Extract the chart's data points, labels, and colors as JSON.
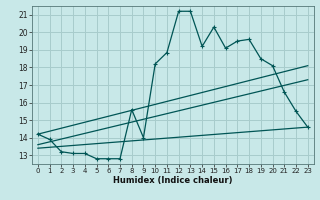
{
  "background_color": "#c8e8e8",
  "grid_color": "#a8cccc",
  "line_color": "#005555",
  "xlabel": "Humidex (Indice chaleur)",
  "xlim": [
    -0.5,
    23.5
  ],
  "ylim": [
    12.5,
    21.5
  ],
  "yticks": [
    13,
    14,
    15,
    16,
    17,
    18,
    19,
    20,
    21
  ],
  "xticks": [
    0,
    1,
    2,
    3,
    4,
    5,
    6,
    7,
    8,
    9,
    10,
    11,
    12,
    13,
    14,
    15,
    16,
    17,
    18,
    19,
    20,
    21,
    22,
    23
  ],
  "curve1_x": [
    0,
    1,
    2,
    3,
    4,
    5,
    6,
    7,
    8,
    9,
    10,
    11,
    12,
    13,
    14,
    15,
    16,
    17,
    18,
    19,
    20,
    21,
    22,
    23
  ],
  "curve1_y": [
    14.2,
    13.9,
    13.2,
    13.1,
    13.1,
    12.8,
    12.8,
    12.8,
    15.6,
    14.0,
    18.2,
    18.85,
    21.2,
    21.2,
    19.2,
    20.3,
    19.1,
    19.5,
    19.6,
    18.5,
    18.1,
    16.6,
    15.5,
    14.6
  ],
  "line2_x": [
    0,
    23
  ],
  "line2_y": [
    14.2,
    18.1
  ],
  "line3_x": [
    0,
    23
  ],
  "line3_y": [
    13.6,
    17.3
  ],
  "line4_x": [
    0,
    23
  ],
  "line4_y": [
    13.4,
    14.6
  ]
}
